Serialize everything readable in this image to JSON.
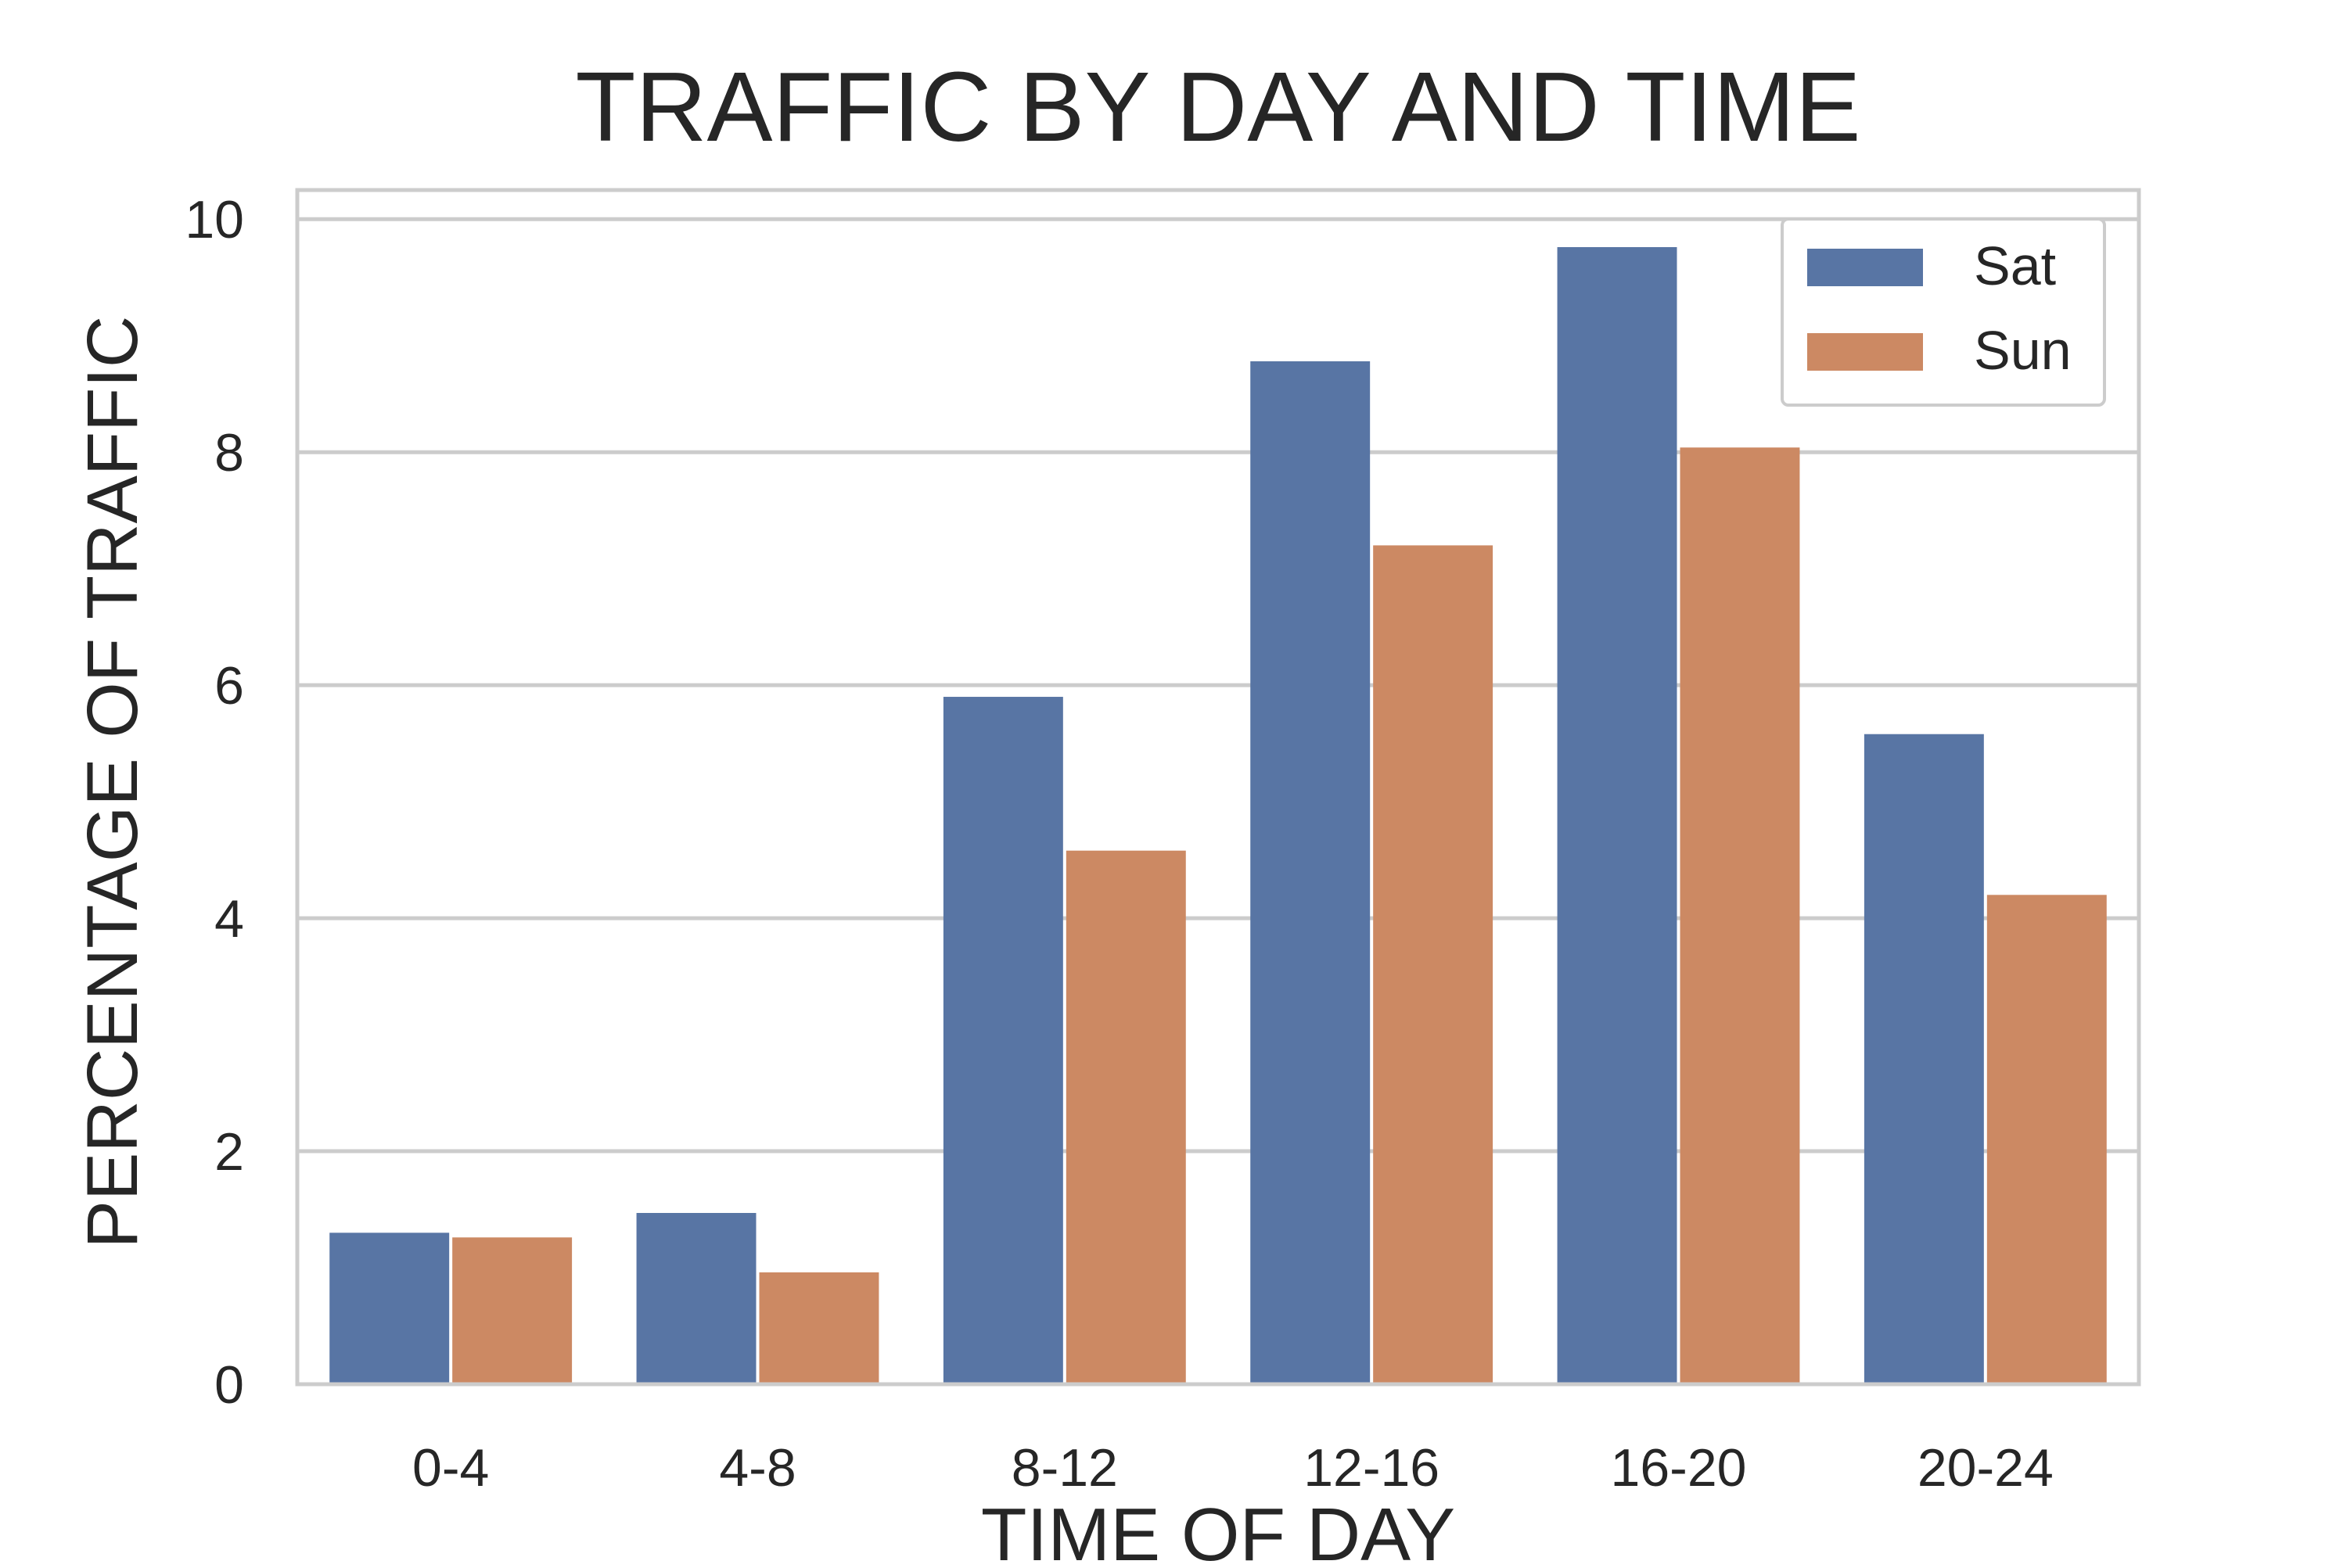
{
  "chart_data": {
    "type": "bar",
    "title": "TRAFFIC BY DAY AND TIME",
    "xlabel": "TIME OF DAY",
    "ylabel": "PERCENTAGE OF TRAFFIC",
    "categories": [
      "0-4",
      "4-8",
      "8-12",
      "12-16",
      "16-20",
      "20-24"
    ],
    "series": [
      {
        "name": "Sat",
        "color": "#5875a4",
        "values": [
          1.3,
          1.47,
          5.9,
          8.78,
          9.76,
          5.58
        ]
      },
      {
        "name": "Sun",
        "color": "#cc8963",
        "values": [
          1.26,
          0.96,
          4.58,
          7.2,
          8.04,
          4.2
        ]
      }
    ],
    "yticks": [
      "0",
      "2",
      "4",
      "6",
      "8",
      "10"
    ],
    "ylim": [
      0,
      10.25
    ],
    "grid": true,
    "legend_position": "top-right"
  }
}
